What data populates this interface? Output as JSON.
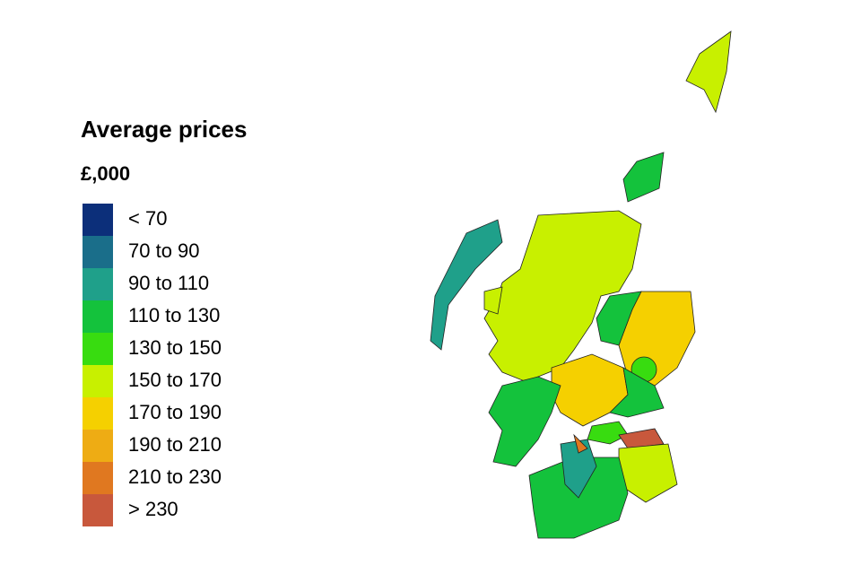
{
  "legend": {
    "title": "Average prices",
    "subtitle": "£,000",
    "items": [
      {
        "label": "< 70",
        "color": "#0c2f7a"
      },
      {
        "label": "70 to 90",
        "color": "#1a6e8a"
      },
      {
        "label": "90 to 110",
        "color": "#1fa08a"
      },
      {
        "label": "110 to 130",
        "color": "#14c23c"
      },
      {
        "label": "130 to 150",
        "color": "#38dc10"
      },
      {
        "label": "150 to 170",
        "color": "#c8f000"
      },
      {
        "label": "170 to 190",
        "color": "#f5d000"
      },
      {
        "label": "190 to 210",
        "color": "#eeac14"
      },
      {
        "label": "210 to 230",
        "color": "#e07820"
      },
      {
        "label": "> 230",
        "color": "#c8583c"
      }
    ]
  }
}
